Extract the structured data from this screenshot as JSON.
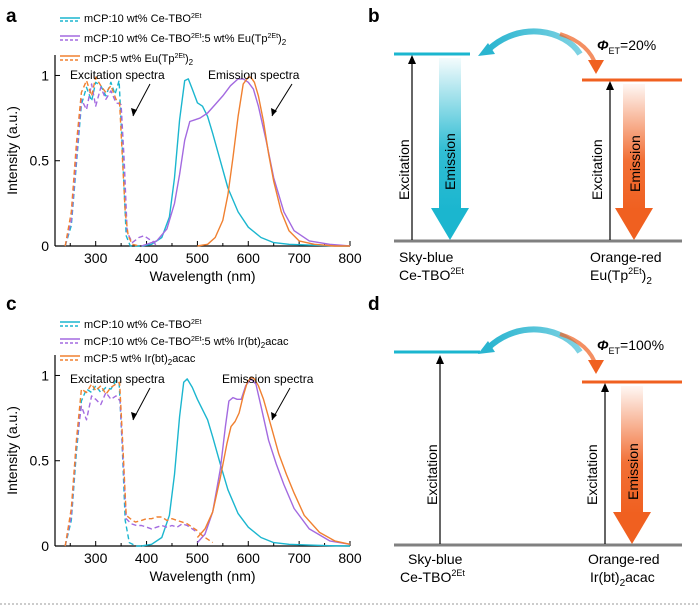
{
  "panels": {
    "a": {
      "label": "a"
    },
    "b": {
      "label": "b"
    },
    "c": {
      "label": "c"
    },
    "d": {
      "label": "d"
    }
  },
  "chart_data": [
    {
      "type": "line",
      "panel": "a",
      "xlabel": "Wavelength (nm)",
      "ylabel": "Intensity (a.u.)",
      "xlim": [
        220,
        800
      ],
      "ylim": [
        0,
        1.12
      ],
      "xticks": [
        300,
        400,
        500,
        600,
        700,
        800
      ],
      "yticks": [
        0,
        0.5,
        1
      ],
      "ytick_labels": [
        "0",
        "0.5",
        "1"
      ],
      "legend_position": "top-left",
      "annotations": [
        "Excitation spectra",
        "Emission spectra"
      ],
      "series": [
        {
          "name": "mCP:10 wt% Ce-TBO2Et",
          "color": "#1BB6CF",
          "kind": "emission",
          "x": [
            390,
            410,
            430,
            445,
            455,
            465,
            475,
            482,
            490,
            500,
            510,
            520,
            530,
            545,
            560,
            580,
            600,
            625,
            650,
            680,
            720,
            760,
            800
          ],
          "y": [
            0,
            0.01,
            0.05,
            0.17,
            0.4,
            0.74,
            0.97,
            0.98,
            0.92,
            0.84,
            0.82,
            0.76,
            0.66,
            0.5,
            0.34,
            0.2,
            0.11,
            0.05,
            0.02,
            0.01,
            0.005,
            0.002,
            0
          ]
        },
        {
          "name": "mCP:10 wt% Ce-TBO2Et",
          "color": "#1BB6CF",
          "kind": "excitation",
          "x": [
            240,
            252,
            262,
            272,
            282,
            292,
            300,
            310,
            320,
            330,
            338,
            346,
            352,
            360,
            368,
            380,
            395
          ],
          "y": [
            0,
            0.12,
            0.48,
            0.83,
            0.93,
            0.85,
            0.96,
            0.94,
            0.88,
            0.96,
            0.89,
            0.97,
            0.6,
            0.06,
            0,
            0,
            0
          ]
        },
        {
          "name": "mCP:10 wt% Ce-TBO2Et:5 wt% Eu(Tp2Et)2",
          "color": "#A36AE0",
          "kind": "emission",
          "x": [
            390,
            420,
            440,
            455,
            465,
            475,
            485,
            495,
            505,
            520,
            535,
            550,
            565,
            580,
            590,
            600,
            610,
            620,
            635,
            650,
            670,
            690,
            720,
            760,
            800
          ],
          "y": [
            0,
            0.03,
            0.1,
            0.25,
            0.42,
            0.62,
            0.73,
            0.74,
            0.75,
            0.78,
            0.83,
            0.88,
            0.94,
            0.98,
            0.98,
            0.96,
            0.92,
            0.82,
            0.62,
            0.4,
            0.2,
            0.09,
            0.03,
            0.01,
            0
          ]
        },
        {
          "name": "mCP:10 wt% Ce-TBO2Et:5 wt% Eu(Tp2Et)2",
          "color": "#A36AE0",
          "kind": "excitation",
          "x": [
            240,
            252,
            262,
            272,
            282,
            292,
            300,
            310,
            320,
            330,
            340,
            350,
            356,
            362,
            372,
            385,
            395,
            405,
            412,
            420
          ],
          "y": [
            0,
            0.15,
            0.52,
            0.86,
            0.8,
            0.95,
            0.82,
            0.93,
            0.86,
            0.91,
            0.84,
            0.83,
            0.5,
            0.08,
            0.02,
            0.05,
            0.06,
            0.04,
            0.03,
            0
          ]
        },
        {
          "name": "mCP:5 wt% Eu(Tp2Et)2",
          "color": "#F08030",
          "kind": "emission",
          "x": [
            500,
            520,
            535,
            550,
            560,
            570,
            580,
            590,
            600,
            605,
            612,
            620,
            630,
            640,
            650,
            665,
            680,
            700,
            730,
            770,
            800
          ],
          "y": [
            0,
            0.01,
            0.05,
            0.15,
            0.3,
            0.52,
            0.76,
            0.95,
            0.99,
            0.99,
            0.96,
            0.88,
            0.73,
            0.54,
            0.38,
            0.2,
            0.09,
            0.03,
            0.01,
            0,
            0
          ]
        },
        {
          "name": "mCP:5 wt% Eu(Tp2Et)2",
          "color": "#F08030",
          "kind": "excitation",
          "x": [
            240,
            252,
            262,
            272,
            282,
            292,
            300,
            310,
            320,
            330,
            340,
            347,
            352,
            358,
            364,
            372,
            385
          ],
          "y": [
            0,
            0.2,
            0.6,
            0.9,
            0.97,
            0.88,
            0.99,
            0.94,
            0.9,
            0.94,
            0.86,
            0.84,
            0.55,
            0.2,
            0.06,
            0.01,
            0
          ]
        }
      ]
    },
    {
      "type": "line",
      "panel": "c",
      "xlabel": "Wavelength (nm)",
      "ylabel": "Intensity (a.u.)",
      "xlim": [
        220,
        800
      ],
      "ylim": [
        0,
        1.12
      ],
      "xticks": [
        300,
        400,
        500,
        600,
        700,
        800
      ],
      "yticks": [
        0,
        0.5,
        1
      ],
      "ytick_labels": [
        "0",
        "0.5",
        "1"
      ],
      "legend_position": "top-left",
      "annotations": [
        "Excitation spectra",
        "Emission spectra"
      ],
      "series": [
        {
          "name": "mCP:10 wt% Ce-TBO2Et",
          "color": "#1BB6CF",
          "kind": "emission",
          "x": [
            390,
            410,
            430,
            445,
            455,
            465,
            473,
            480,
            490,
            500,
            510,
            520,
            530,
            545,
            560,
            580,
            600,
            625,
            650,
            680,
            720,
            760,
            800
          ],
          "y": [
            0,
            0.01,
            0.05,
            0.18,
            0.42,
            0.76,
            0.96,
            0.98,
            0.93,
            0.86,
            0.8,
            0.74,
            0.64,
            0.48,
            0.33,
            0.19,
            0.11,
            0.05,
            0.02,
            0.01,
            0.005,
            0.002,
            0
          ]
        },
        {
          "name": "mCP:10 wt% Ce-TBO2Et",
          "color": "#1BB6CF",
          "kind": "excitation",
          "x": [
            240,
            252,
            262,
            272,
            282,
            292,
            300,
            310,
            320,
            330,
            340,
            346,
            352,
            358,
            366,
            380,
            395
          ],
          "y": [
            0,
            0.15,
            0.55,
            0.85,
            0.92,
            0.9,
            0.94,
            0.9,
            0.93,
            0.92,
            0.97,
            0.96,
            0.6,
            0.15,
            0.02,
            0,
            0
          ]
        },
        {
          "name": "mCP:10 wt% Ce-TBO2Et:5 wt% Ir(bt)2acac",
          "color": "#A36AE0",
          "kind": "emission",
          "x": [
            500,
            515,
            530,
            545,
            555,
            562,
            570,
            578,
            586,
            595,
            605,
            615,
            625,
            640,
            655,
            670,
            690,
            720,
            760,
            800
          ],
          "y": [
            0.02,
            0.07,
            0.2,
            0.45,
            0.7,
            0.85,
            0.87,
            0.86,
            0.86,
            0.94,
            0.98,
            0.95,
            0.82,
            0.62,
            0.48,
            0.36,
            0.22,
            0.1,
            0.03,
            0.01
          ]
        },
        {
          "name": "mCP:10 wt% Ce-TBO2Et:5 wt% Ir(bt)2acac",
          "color": "#A36AE0",
          "kind": "excitation",
          "x": [
            240,
            252,
            262,
            272,
            282,
            292,
            300,
            310,
            320,
            330,
            340,
            348,
            354,
            360,
            370,
            380,
            390,
            400,
            410,
            420,
            430,
            440,
            450,
            460,
            470,
            480,
            490,
            500
          ],
          "y": [
            0,
            0.18,
            0.6,
            0.82,
            0.74,
            0.88,
            0.86,
            0.83,
            0.9,
            0.86,
            0.88,
            0.85,
            0.5,
            0.16,
            0.13,
            0.12,
            0.12,
            0.11,
            0.1,
            0.11,
            0.12,
            0.11,
            0.12,
            0.11,
            0.13,
            0.12,
            0.1,
            0.08
          ]
        },
        {
          "name": "mCP:5 wt% Ir(bt)2acac",
          "color": "#F08030",
          "kind": "emission",
          "x": [
            500,
            515,
            530,
            545,
            558,
            566,
            574,
            582,
            590,
            598,
            606,
            612,
            620,
            630,
            645,
            660,
            675,
            690,
            710,
            740,
            770,
            800
          ],
          "y": [
            0.05,
            0.1,
            0.2,
            0.4,
            0.6,
            0.7,
            0.73,
            0.78,
            0.88,
            0.96,
            0.99,
            0.98,
            0.94,
            0.86,
            0.7,
            0.54,
            0.42,
            0.31,
            0.18,
            0.08,
            0.03,
            0.01
          ]
        },
        {
          "name": "mCP:5 wt% Ir(bt)2acac",
          "color": "#F08030",
          "kind": "excitation",
          "x": [
            240,
            252,
            262,
            272,
            282,
            292,
            300,
            310,
            320,
            330,
            340,
            347,
            353,
            360,
            368,
            378,
            390,
            400,
            410,
            420,
            430,
            440,
            450,
            460,
            470,
            480,
            490,
            500,
            510,
            520,
            530
          ],
          "y": [
            0,
            0.22,
            0.62,
            0.92,
            0.9,
            0.95,
            0.91,
            0.94,
            0.89,
            0.93,
            0.95,
            0.96,
            0.62,
            0.18,
            0.16,
            0.14,
            0.15,
            0.16,
            0.16,
            0.17,
            0.17,
            0.15,
            0.16,
            0.15,
            0.14,
            0.13,
            0.11,
            0.09,
            0.06,
            0.04,
            0.02
          ]
        }
      ]
    }
  ],
  "legend_a": [
    {
      "base": "mCP:10 wt% Ce-TBO",
      "sup": "2Et",
      "tail": "",
      "sub": "",
      "end": "",
      "color": "#1BB6CF"
    },
    {
      "base": "mCP:10 wt% Ce-TBO",
      "sup": "2Et",
      "tail": ":5 wt% Eu(Tp",
      "sup2": "2Et",
      "tail2": ")",
      "sub": "2",
      "color": "#A36AE0"
    },
    {
      "base": "mCP:5 wt% Eu(Tp",
      "sup": "2Et",
      "tail": ")",
      "sub": "2",
      "color": "#F08030"
    }
  ],
  "legend_c": [
    {
      "base": "mCP:10 wt% Ce-TBO",
      "sup": "2Et",
      "tail": "",
      "color": "#1BB6CF"
    },
    {
      "base": "mCP:10 wt% Ce-TBO",
      "sup": "2Et",
      "tail": ":5 wt% Ir(bt)",
      "sub": "2",
      "end": "acac",
      "color": "#A36AE0"
    },
    {
      "base": "mCP:5 wt% Ir(bt)",
      "sub": "2",
      "end": "acac",
      "color": "#F08030"
    }
  ],
  "text": {
    "excitation_spectra": "Excitation spectra",
    "emission_spectra": "Emission spectra",
    "excitation": "Excitation",
    "emission": "Emission",
    "phi": "Φ",
    "et": "ET",
    "eff_b": "=20%",
    "eff_d": "=100%",
    "sky_blue": "Sky-blue",
    "ce_tbo": "Ce-TBO",
    "sup_2et": "2Et",
    "orange_red": "Orange-red",
    "eu_tp": "Eu(Tp",
    "eu_close": ")",
    "sub_2": "2",
    "ir_bt": "Ir(bt)",
    "acac": "acac"
  },
  "colors": {
    "sky_blue": "#1BB6CF",
    "orange": "#F06020",
    "purple": "#A36AE0",
    "orange_curve": "#F08030",
    "axis": "#000000",
    "ground": "#808080",
    "curved_arrow": "#2AB5D0"
  }
}
